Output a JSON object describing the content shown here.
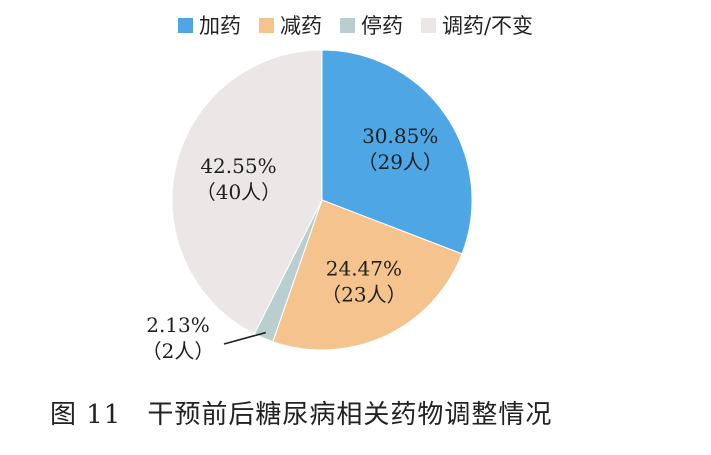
{
  "caption": {
    "figure_number": "图 11",
    "title": "干预前后糖尿病相关药物调整情况"
  },
  "chart_data": {
    "type": "pie",
    "start_angle_deg": 0,
    "direction": "clockwise",
    "legend_position": "top",
    "series": [
      {
        "name": "加药",
        "percent": 30.85,
        "count": 29,
        "percent_label": "30.85%",
        "count_label": "（29人）",
        "color": "#4ea6e4"
      },
      {
        "name": "减药",
        "percent": 24.47,
        "count": 23,
        "percent_label": "24.47%",
        "count_label": "（23人）",
        "color": "#f5c48e"
      },
      {
        "name": "停药",
        "percent": 2.13,
        "count": 2,
        "percent_label": "2.13%",
        "count_label": "（2人）",
        "color": "#b9cfcf"
      },
      {
        "name": "调药/不变",
        "percent": 42.55,
        "count": 40,
        "percent_label": "42.55%",
        "count_label": "（40人）",
        "color": "#ebe7e7"
      }
    ]
  }
}
